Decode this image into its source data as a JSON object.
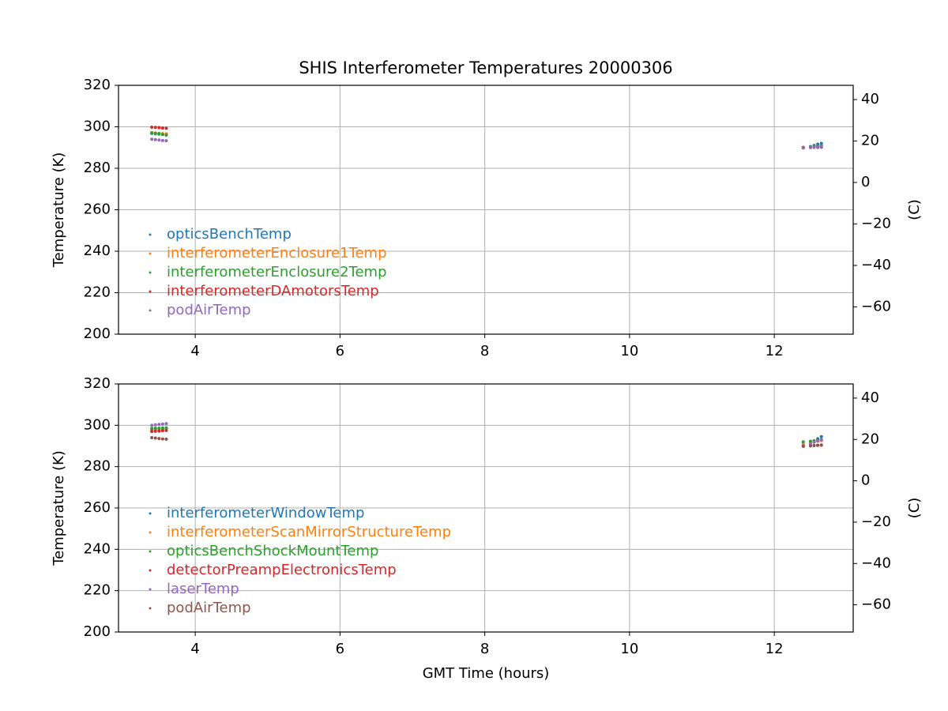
{
  "chart_data": [
    {
      "type": "scatter",
      "title": "SHIS Interferometer Temperatures 20000306",
      "ylabel": "Temperature (K)",
      "y2label": "(C)",
      "x": [
        3.4,
        3.45,
        3.5,
        3.55,
        3.6,
        12.4,
        12.5,
        12.55,
        12.6,
        12.65
      ],
      "series": [
        {
          "name": "opticsBenchTemp",
          "color": "#1f77b4",
          "values": [
            296.8,
            296.6,
            296.5,
            296.3,
            296.2,
            290,
            290.5,
            291,
            291.6,
            292
          ]
        },
        {
          "name": "interferometerEnclosure1Temp",
          "color": "#ff7f0e",
          "values": [
            297.2,
            297,
            296.9,
            296.7,
            296.6,
            290,
            290.2,
            290.4,
            290.6,
            290.8
          ]
        },
        {
          "name": "interferometerEnclosure2Temp",
          "color": "#2ca02c",
          "values": [
            297,
            296.8,
            296.6,
            296.3,
            296,
            290,
            290.3,
            290.5,
            290.8,
            291
          ]
        },
        {
          "name": "interferometerDAmotorsTemp",
          "color": "#d62728",
          "values": [
            299.8,
            299.7,
            299.6,
            299.4,
            299.3,
            290,
            290,
            290.1,
            290.1,
            290.2
          ]
        },
        {
          "name": "podAirTemp",
          "color": "#9467bd",
          "values": [
            294,
            293.8,
            293.6,
            293.4,
            293.3,
            289.8,
            290,
            290.2,
            290.4,
            290.5
          ]
        }
      ],
      "xlim": [
        2.94,
        13.09
      ],
      "xticks": [
        4,
        6,
        8,
        10,
        12
      ],
      "ylim": [
        200,
        320
      ],
      "yticks": [
        200,
        220,
        240,
        260,
        280,
        300,
        320
      ],
      "y2lim": [
        -73.15,
        46.85
      ],
      "y2ticks": [
        {
          "value": -60,
          "label": "−60"
        },
        {
          "value": -40,
          "label": "−40"
        },
        {
          "value": -20,
          "label": "−20"
        },
        0,
        20,
        40
      ],
      "grid": true,
      "legend": "lower left"
    },
    {
      "type": "scatter",
      "xlabel": "GMT Time (hours)",
      "ylabel": "Temperature (K)",
      "y2label": "(C)",
      "x": [
        3.4,
        3.45,
        3.5,
        3.55,
        3.6,
        12.4,
        12.5,
        12.55,
        12.6,
        12.65
      ],
      "series": [
        {
          "name": "interferometerWindowTemp",
          "color": "#1f77b4",
          "values": [
            298,
            298.2,
            298.3,
            298.5,
            298.6,
            290,
            291.5,
            292.5,
            293.5,
            294.5
          ]
        },
        {
          "name": "interferometerScanMirrorStructureTemp",
          "color": "#ff7f0e",
          "values": [
            297.5,
            297.6,
            297.7,
            297.8,
            297.9,
            291,
            291.5,
            292,
            292.3,
            292.6
          ]
        },
        {
          "name": "opticsBenchShockMountTemp",
          "color": "#2ca02c",
          "values": [
            298.5,
            298.6,
            298.6,
            298.7,
            298.8,
            292,
            292.3,
            292.5,
            292.8,
            293
          ]
        },
        {
          "name": "detectorPreampElectronicsTemp",
          "color": "#d62728",
          "values": [
            297,
            297.1,
            297.2,
            297.4,
            297.5,
            290,
            290.1,
            290.2,
            290.3,
            290.4
          ]
        },
        {
          "name": "laserTemp",
          "color": "#9467bd",
          "values": [
            300,
            300.2,
            300.4,
            300.6,
            300.8,
            290,
            291,
            291.8,
            292.5,
            293
          ]
        },
        {
          "name": "podAirTemp",
          "color": "#8c564b",
          "values": [
            294,
            293.8,
            293.6,
            293.4,
            293.3,
            289.8,
            290,
            290.2,
            290.4,
            290.5
          ]
        }
      ],
      "xlim": [
        2.94,
        13.09
      ],
      "xticks": [
        4,
        6,
        8,
        10,
        12
      ],
      "ylim": [
        200,
        320
      ],
      "yticks": [
        200,
        220,
        240,
        260,
        280,
        300,
        320
      ],
      "y2lim": [
        -73.15,
        46.85
      ],
      "y2ticks": [
        {
          "value": -60,
          "label": "−60"
        },
        {
          "value": -40,
          "label": "−40"
        },
        {
          "value": -20,
          "label": "−20"
        },
        0,
        20,
        40
      ],
      "grid": true,
      "legend": "lower left"
    }
  ]
}
